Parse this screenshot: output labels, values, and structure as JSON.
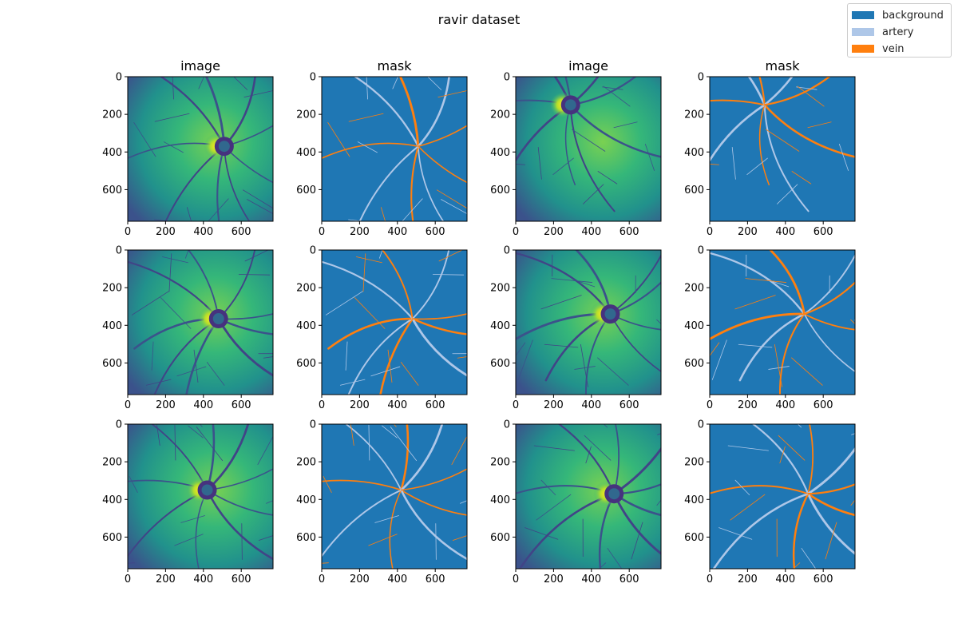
{
  "chart_data": {
    "type": "image-grid",
    "title": "ravir dataset",
    "rows": 3,
    "cols": 4,
    "column_titles": [
      "image",
      "mask",
      "image",
      "mask"
    ],
    "axes": {
      "x_ticks": [
        0,
        200,
        400,
        600
      ],
      "y_ticks": [
        0,
        200,
        400,
        600
      ],
      "xlim": [
        0,
        768
      ],
      "ylim": [
        768,
        0
      ]
    },
    "legend": {
      "placement": "top-right",
      "entries": [
        {
          "label": "background",
          "color": "#1f77b4"
        },
        {
          "label": "artery",
          "color": "#aec7e8"
        },
        {
          "label": "vein",
          "color": "#ff7f0e"
        }
      ]
    },
    "image_colormap": "viridis"
  }
}
